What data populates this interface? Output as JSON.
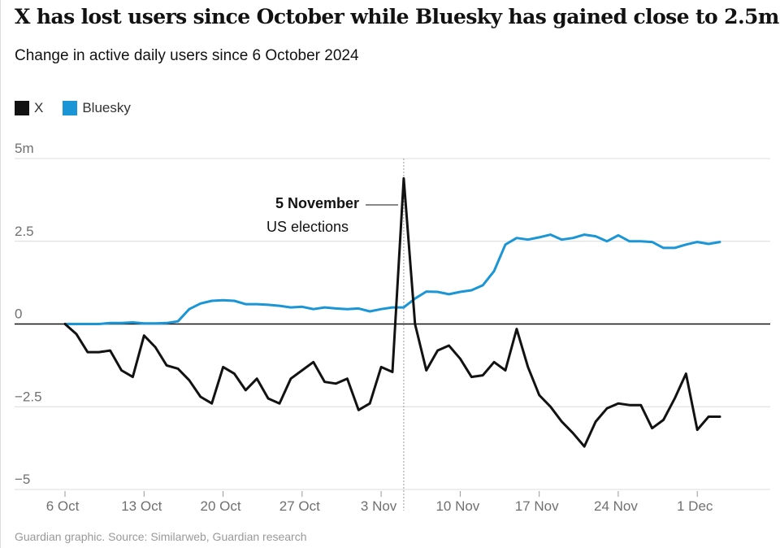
{
  "title": "X has lost users since October while Bluesky has gained close to 2.5m",
  "subtitle": "Change in active daily users since 6 October 2024",
  "source": "Guardian graphic. Source: Similarweb, Guardian research",
  "legend": [
    {
      "name": "X",
      "color": "#121212"
    },
    {
      "name": "Bluesky",
      "color": "#1a95d5"
    }
  ],
  "chart_data": {
    "type": "line",
    "start_date": "2024-10-06",
    "x_tick_labels": [
      "6 Oct",
      "13 Oct",
      "20 Oct",
      "27 Oct",
      "3 Nov",
      "10 Nov",
      "17 Nov",
      "24 Nov",
      "1 Dec"
    ],
    "x_tick_days": [
      0,
      7,
      14,
      21,
      28,
      35,
      42,
      49,
      56
    ],
    "y_ticks": [
      {
        "value": 5,
        "label": "5m"
      },
      {
        "value": 2.5,
        "label": "2.5"
      },
      {
        "value": 0,
        "label": "0"
      },
      {
        "value": -2.5,
        "label": "−2.5"
      },
      {
        "value": -5,
        "label": "−5"
      }
    ],
    "ylim": [
      -5,
      5
    ],
    "xlim": [
      0,
      59
    ],
    "grid": true,
    "legend_position": "top-left",
    "annotation": {
      "day": 30,
      "label": "5 November",
      "sublabel": "US elections"
    },
    "series": [
      {
        "name": "X",
        "color": "#121212",
        "x": [
          0,
          1,
          2,
          3,
          4,
          5,
          6,
          7,
          8,
          9,
          10,
          11,
          12,
          13,
          14,
          15,
          16,
          17,
          18,
          19,
          20,
          21,
          22,
          23,
          24,
          25,
          26,
          27,
          28,
          29,
          30,
          31,
          32,
          33,
          34,
          35,
          36,
          37,
          38,
          39,
          40,
          41,
          42,
          43,
          44,
          45,
          46,
          47,
          48,
          49,
          50,
          51,
          52,
          53,
          54,
          55,
          56,
          57,
          58
        ],
        "y": [
          0,
          -0.3,
          -0.85,
          -0.85,
          -0.8,
          -1.4,
          -1.6,
          -0.35,
          -0.7,
          -1.25,
          -1.35,
          -1.7,
          -2.2,
          -2.4,
          -1.3,
          -1.5,
          -2.0,
          -1.65,
          -2.25,
          -2.4,
          -1.65,
          -1.4,
          -1.15,
          -1.75,
          -1.8,
          -1.65,
          -2.6,
          -2.4,
          -1.3,
          -1.45,
          4.4,
          0,
          -1.4,
          -0.8,
          -0.65,
          -1.05,
          -1.6,
          -1.55,
          -1.15,
          -1.4,
          -0.15,
          -1.3,
          -2.15,
          -2.5,
          -2.95,
          -3.3,
          -3.7,
          -2.95,
          -2.55,
          -2.4,
          -2.45,
          -2.45,
          -3.15,
          -2.9,
          -2.25,
          -1.5,
          -3.2,
          -2.8,
          -2.8
        ]
      },
      {
        "name": "Bluesky",
        "color": "#1a95d5",
        "x": [
          0,
          1,
          2,
          3,
          4,
          5,
          6,
          7,
          8,
          9,
          10,
          11,
          12,
          13,
          14,
          15,
          16,
          17,
          18,
          19,
          20,
          21,
          22,
          23,
          24,
          25,
          26,
          27,
          28,
          29,
          30,
          31,
          32,
          33,
          34,
          35,
          36,
          37,
          38,
          39,
          40,
          41,
          42,
          43,
          44,
          45,
          46,
          47,
          48,
          49,
          50,
          51,
          52,
          53,
          54,
          55,
          56,
          57,
          58
        ],
        "y": [
          0,
          0,
          0,
          0,
          0.03,
          0.03,
          0.05,
          0.02,
          0.02,
          0.03,
          0.08,
          0.45,
          0.62,
          0.7,
          0.72,
          0.7,
          0.6,
          0.6,
          0.58,
          0.55,
          0.5,
          0.52,
          0.45,
          0.5,
          0.47,
          0.45,
          0.47,
          0.38,
          0.45,
          0.5,
          0.5,
          0.77,
          0.98,
          0.97,
          0.9,
          0.97,
          1.02,
          1.17,
          1.6,
          2.4,
          2.6,
          2.55,
          2.62,
          2.7,
          2.55,
          2.6,
          2.7,
          2.65,
          2.5,
          2.68,
          2.5,
          2.5,
          2.48,
          2.3,
          2.3,
          2.4,
          2.48,
          2.42,
          2.48
        ]
      }
    ]
  }
}
